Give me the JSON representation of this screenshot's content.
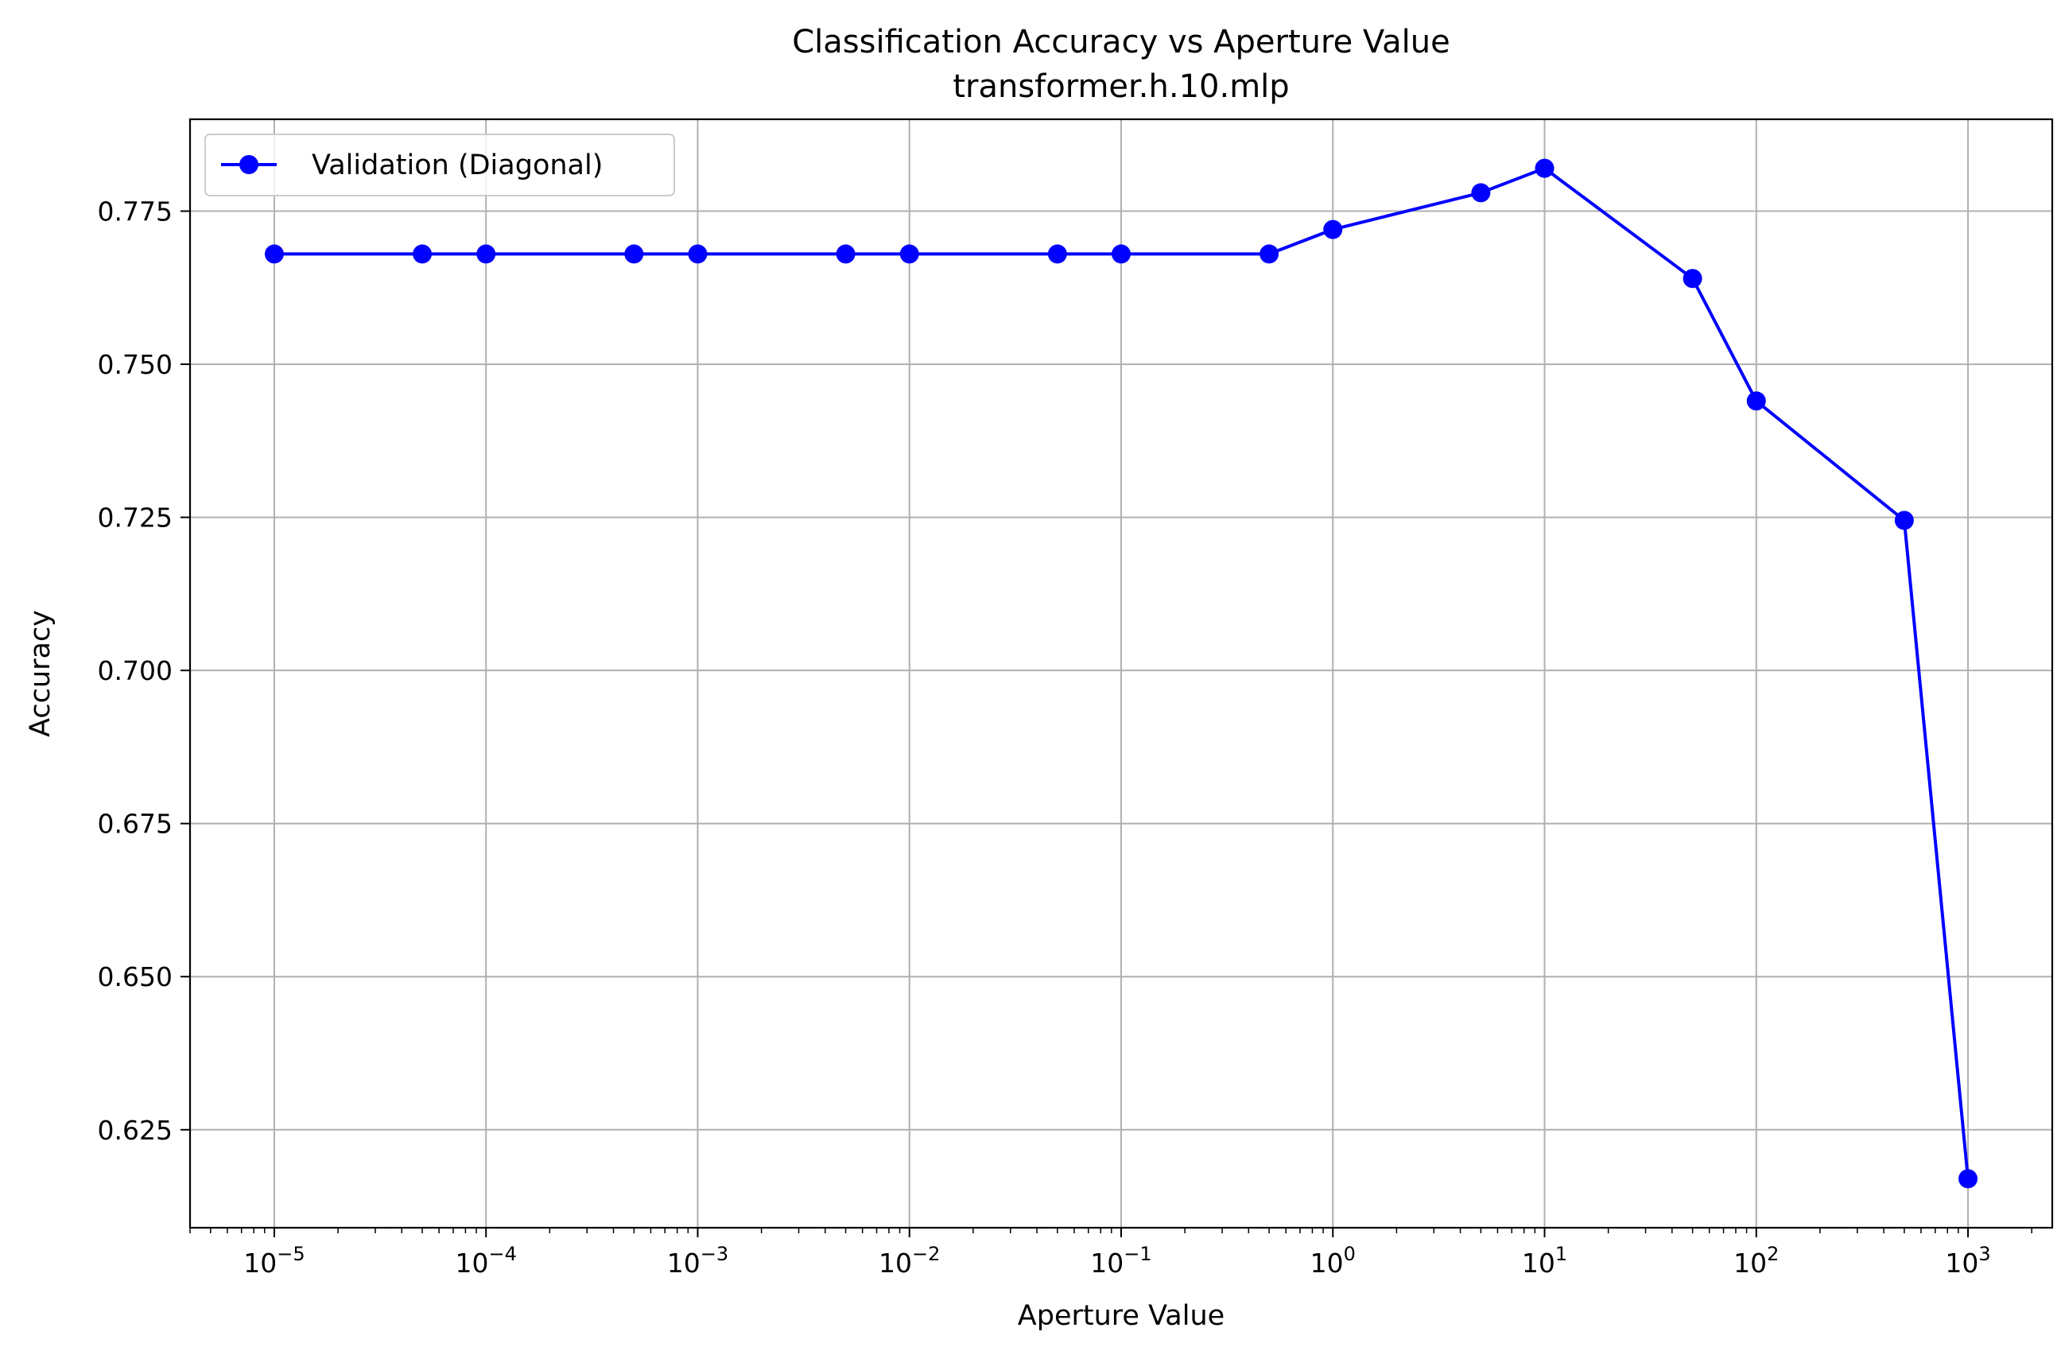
{
  "chart_data": {
    "type": "line",
    "title": "Classification Accuracy vs Aperture Value",
    "subtitle": "transformer.h.10.mlp",
    "xlabel": "Aperture Value",
    "ylabel": "Accuracy",
    "xscale": "log",
    "xlim": [
      4e-06,
      2500
    ],
    "ylim": [
      0.609,
      0.79
    ],
    "grid": true,
    "legend_position": "upper-left",
    "x_ticks": [
      {
        "value": 1e-05,
        "base": "10",
        "exp": "−5"
      },
      {
        "value": 0.0001,
        "base": "10",
        "exp": "−4"
      },
      {
        "value": 0.001,
        "base": "10",
        "exp": "−3"
      },
      {
        "value": 0.01,
        "base": "10",
        "exp": "−2"
      },
      {
        "value": 0.1,
        "base": "10",
        "exp": "−1"
      },
      {
        "value": 1,
        "base": "10",
        "exp": "0"
      },
      {
        "value": 10,
        "base": "10",
        "exp": "1"
      },
      {
        "value": 100,
        "base": "10",
        "exp": "2"
      },
      {
        "value": 1000,
        "base": "10",
        "exp": "3"
      }
    ],
    "y_ticks": [
      {
        "value": 0.625,
        "label": "0.625"
      },
      {
        "value": 0.65,
        "label": "0.650"
      },
      {
        "value": 0.675,
        "label": "0.675"
      },
      {
        "value": 0.7,
        "label": "0.700"
      },
      {
        "value": 0.725,
        "label": "0.725"
      },
      {
        "value": 0.75,
        "label": "0.750"
      },
      {
        "value": 0.775,
        "label": "0.775"
      }
    ],
    "series": [
      {
        "name": "Validation (Diagonal)",
        "color": "#0000ff",
        "marker": "circle",
        "x": [
          1e-05,
          5e-05,
          0.0001,
          0.0005,
          0.001,
          0.005,
          0.01,
          0.05,
          0.1,
          0.5,
          1,
          5,
          10,
          50,
          100,
          500,
          1000
        ],
        "y": [
          0.768,
          0.768,
          0.768,
          0.768,
          0.768,
          0.768,
          0.768,
          0.768,
          0.768,
          0.768,
          0.772,
          0.778,
          0.782,
          0.764,
          0.744,
          0.7245,
          0.617
        ]
      }
    ]
  }
}
